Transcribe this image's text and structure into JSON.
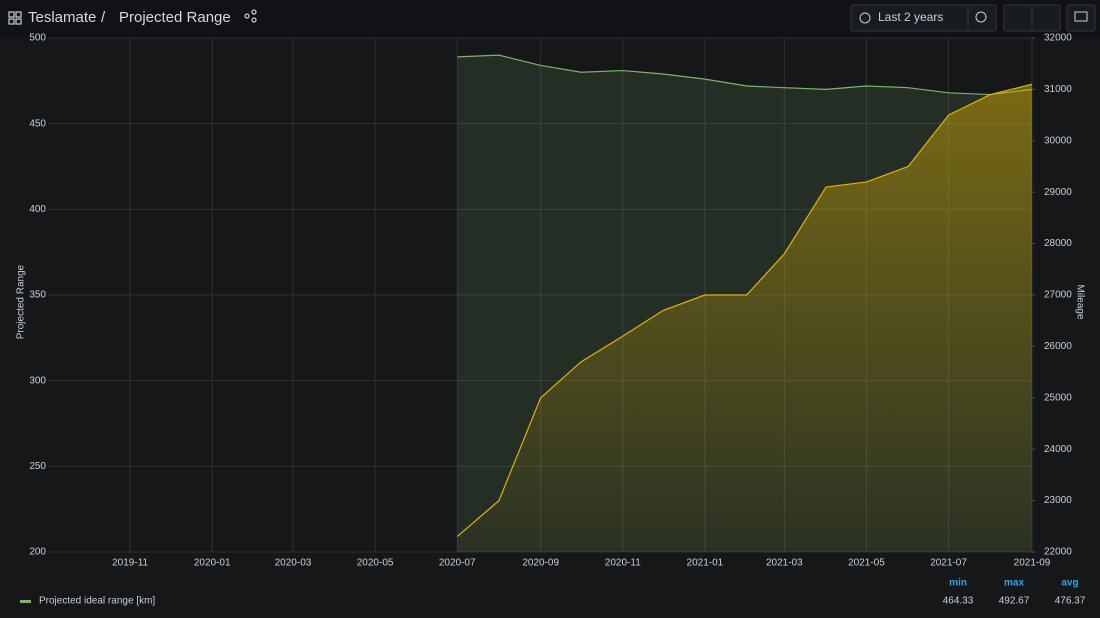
{
  "header": {
    "dashboard": "Teslamate",
    "separator": "/",
    "title": "Projected Range",
    "time_range": "Last 2 years"
  },
  "chart_data": {
    "type": "line",
    "x": [
      "2020-07",
      "2020-08",
      "2020-09",
      "2020-10",
      "2020-11",
      "2020-12",
      "2021-01",
      "2021-02",
      "2021-03",
      "2021-04",
      "2021-05",
      "2021-06",
      "2021-07",
      "2021-08",
      "2021-09"
    ],
    "series": [
      {
        "name": "Projected ideal range [km]",
        "color": "#7eb26d",
        "values": [
          489,
          490,
          484,
          480,
          481,
          479,
          476,
          472,
          471,
          470,
          472,
          471,
          468,
          467,
          470
        ]
      },
      {
        "color": "#e0b400",
        "axis": "y2",
        "values": [
          22300,
          23000,
          25000,
          25700,
          26200,
          26700,
          27000,
          27000,
          27800,
          29100,
          29200,
          29500,
          30500,
          30900,
          31100
        ]
      }
    ],
    "xlim": [
      "2019-09",
      "2021-09"
    ],
    "xticks": [
      "2019-11",
      "2020-01",
      "2020-03",
      "2020-05",
      "2020-07",
      "2020-09",
      "2020-11",
      "2021-01",
      "2021-03",
      "2021-05",
      "2021-07",
      "2021-09"
    ],
    "ylim": [
      200,
      500
    ],
    "yticks": [
      200,
      250,
      300,
      350,
      400,
      450,
      500
    ],
    "y2lim": [
      22000,
      32000
    ],
    "y2ticks": [
      22000,
      23000,
      24000,
      25000,
      26000,
      27000,
      28000,
      29000,
      30000,
      31000,
      32000
    ],
    "ylabel": "Projected Range",
    "y2label": "Mileage",
    "grid": true,
    "legend": {
      "columns": [
        "min",
        "max",
        "avg"
      ],
      "stats": [
        {
          "value": 464.33,
          "label": "464.33"
        },
        {
          "value": 492.67,
          "label": "492.67"
        },
        {
          "value": 476.37,
          "label": "476.37"
        }
      ]
    }
  }
}
